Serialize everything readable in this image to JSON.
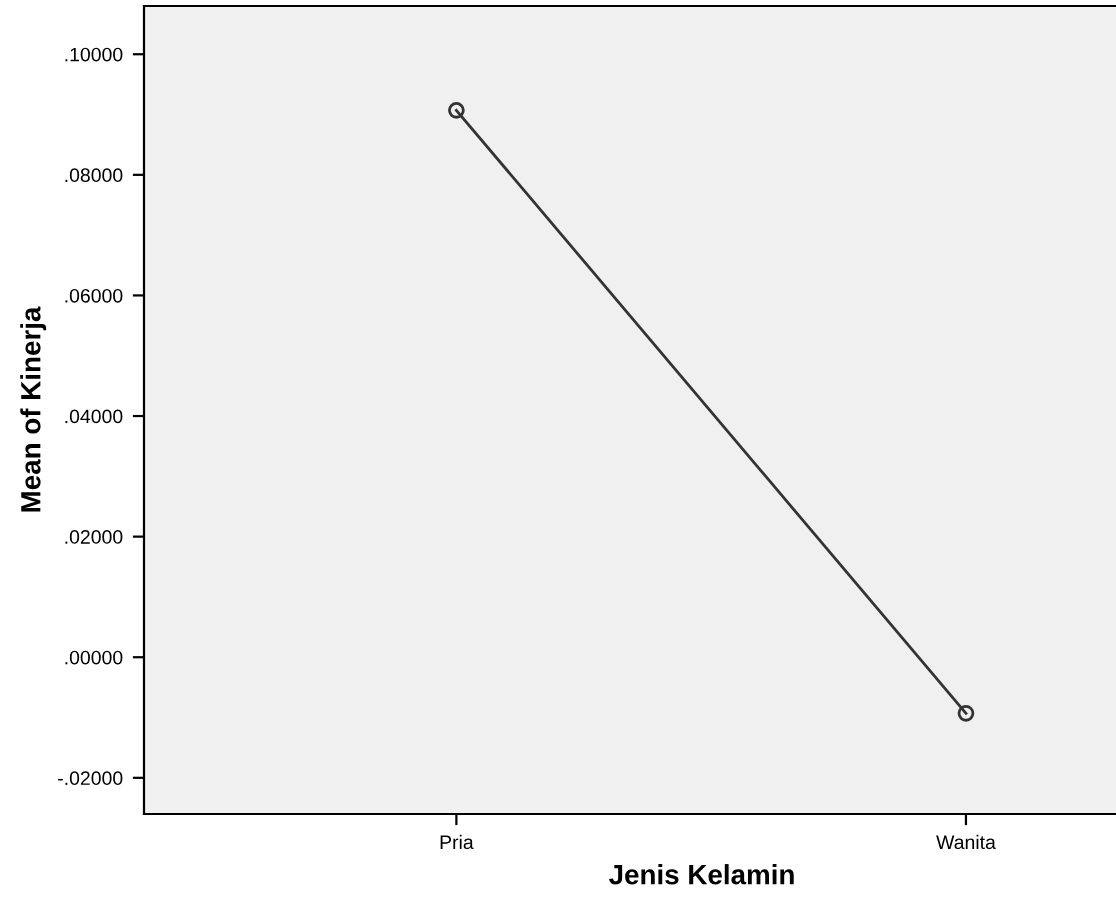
{
  "chart_data": {
    "type": "line",
    "xlabel": "Jenis Kelamin",
    "ylabel": "Mean of Kinerja",
    "categories": [
      "Pria",
      "Wanita"
    ],
    "series": [
      {
        "color": "#333333",
        "values": [
          0.0907,
          -0.0093
        ]
      }
    ],
    "marker": "circle",
    "line_style": "solid",
    "grid": false,
    "ylim": [
      -0.026,
      0.108
    ],
    "yticks": [
      {
        "value": -0.02,
        "label": "-.02000"
      },
      {
        "value": 0.0,
        "label": ".00000"
      },
      {
        "value": 0.02,
        "label": ".02000"
      },
      {
        "value": 0.04,
        "label": ".04000"
      },
      {
        "value": 0.06,
        "label": ".06000"
      },
      {
        "value": 0.08,
        "label": ".08000"
      },
      {
        "value": 0.1,
        "label": ".10000"
      }
    ]
  }
}
